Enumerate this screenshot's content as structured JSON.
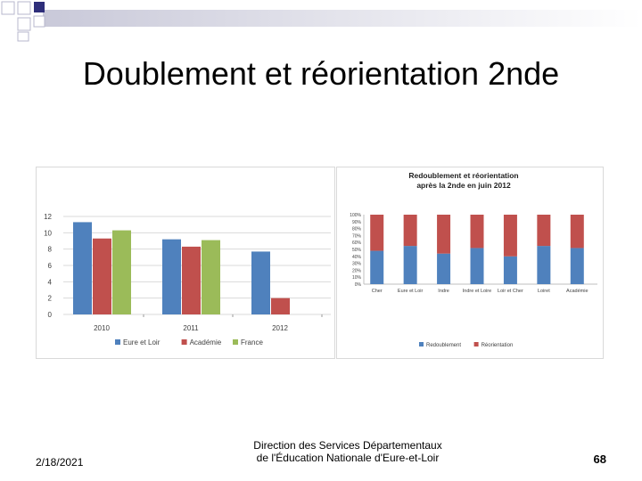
{
  "slide": {
    "title": "Doublement et réorientation 2nde",
    "date": "2/18/2021",
    "footer_line1": "Direction des Services Départementaux",
    "footer_line2": "de l'Éducation Nationale d'Eure-et-Loir",
    "page_number": "68"
  },
  "colors": {
    "blue": "#4f81bd",
    "red": "#c0504d",
    "green": "#9bbb59",
    "grid": "#d9d9d9"
  },
  "chart_data": [
    {
      "type": "bar",
      "title": "",
      "categories": [
        "2010",
        "2011",
        "2012"
      ],
      "yticks": [
        "0",
        "2",
        "4",
        "6",
        "8",
        "10",
        "12"
      ],
      "ylim": [
        0,
        12
      ],
      "grid": true,
      "legend_position": "bottom",
      "series": [
        {
          "name": "Eure et Loir",
          "color": "#4f81bd",
          "values": [
            11.3,
            9.2,
            7.7
          ]
        },
        {
          "name": "Académie",
          "color": "#c0504d",
          "values": [
            9.3,
            8.3,
            2.0
          ]
        },
        {
          "name": "France",
          "color": "#9bbb59",
          "values": [
            10.3,
            9.1,
            null
          ]
        }
      ]
    },
    {
      "type": "bar",
      "stacked": true,
      "title_line1": "Redoublement et réorientation",
      "title_line2": "après la 2nde en juin 2012",
      "categories": [
        "Cher",
        "Eure et Loir",
        "Indre",
        "Indre et Loire",
        "Loir et Cher",
        "Loiret",
        "Académie"
      ],
      "yticks": [
        "0%",
        "10%",
        "20%",
        "30%",
        "40%",
        "50%",
        "60%",
        "70%",
        "80%",
        "90%",
        "100%"
      ],
      "ylim": [
        0,
        100
      ],
      "grid": false,
      "legend_position": "bottom",
      "series": [
        {
          "name": "Redoublement",
          "color": "#4f81bd",
          "values": [
            48,
            55,
            44,
            52,
            40,
            55,
            52
          ]
        },
        {
          "name": "Réorientation",
          "color": "#c0504d",
          "values": [
            52,
            45,
            56,
            48,
            60,
            45,
            48
          ]
        }
      ]
    }
  ]
}
